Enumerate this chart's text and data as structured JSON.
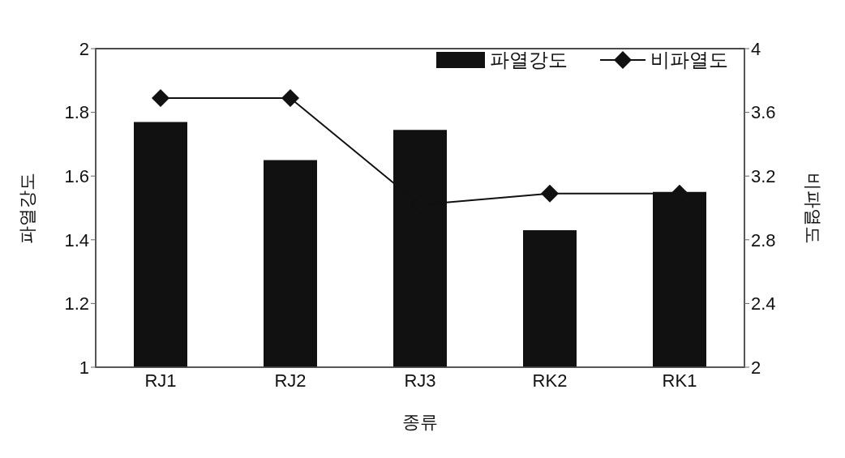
{
  "chart_data": {
    "type": "bar",
    "xlabel": "종류",
    "ylabel": "파열강도",
    "y2label": "비파열도",
    "categories": [
      "RJ1",
      "RJ2",
      "RJ3",
      "RK2",
      "RK1"
    ],
    "series": [
      {
        "name": "파열강도",
        "color": "#111111",
        "values": [
          1.77,
          1.65,
          1.745,
          1.43,
          1.55
        ]
      },
      {
        "name": "비파열도",
        "type": "line",
        "axis": "y2",
        "color": "#111111",
        "marker": "diamond",
        "values": [
          3.69,
          3.69,
          3.02,
          3.09,
          3.09
        ]
      }
    ],
    "ylim": [
      1,
      2
    ],
    "yticks": [
      1,
      1.2,
      1.4,
      1.6,
      1.8,
      2
    ],
    "y2lim": [
      2,
      4
    ],
    "y2ticks": [
      2,
      2.4,
      2.8,
      3.2,
      3.6,
      4
    ],
    "legend": "top right"
  }
}
